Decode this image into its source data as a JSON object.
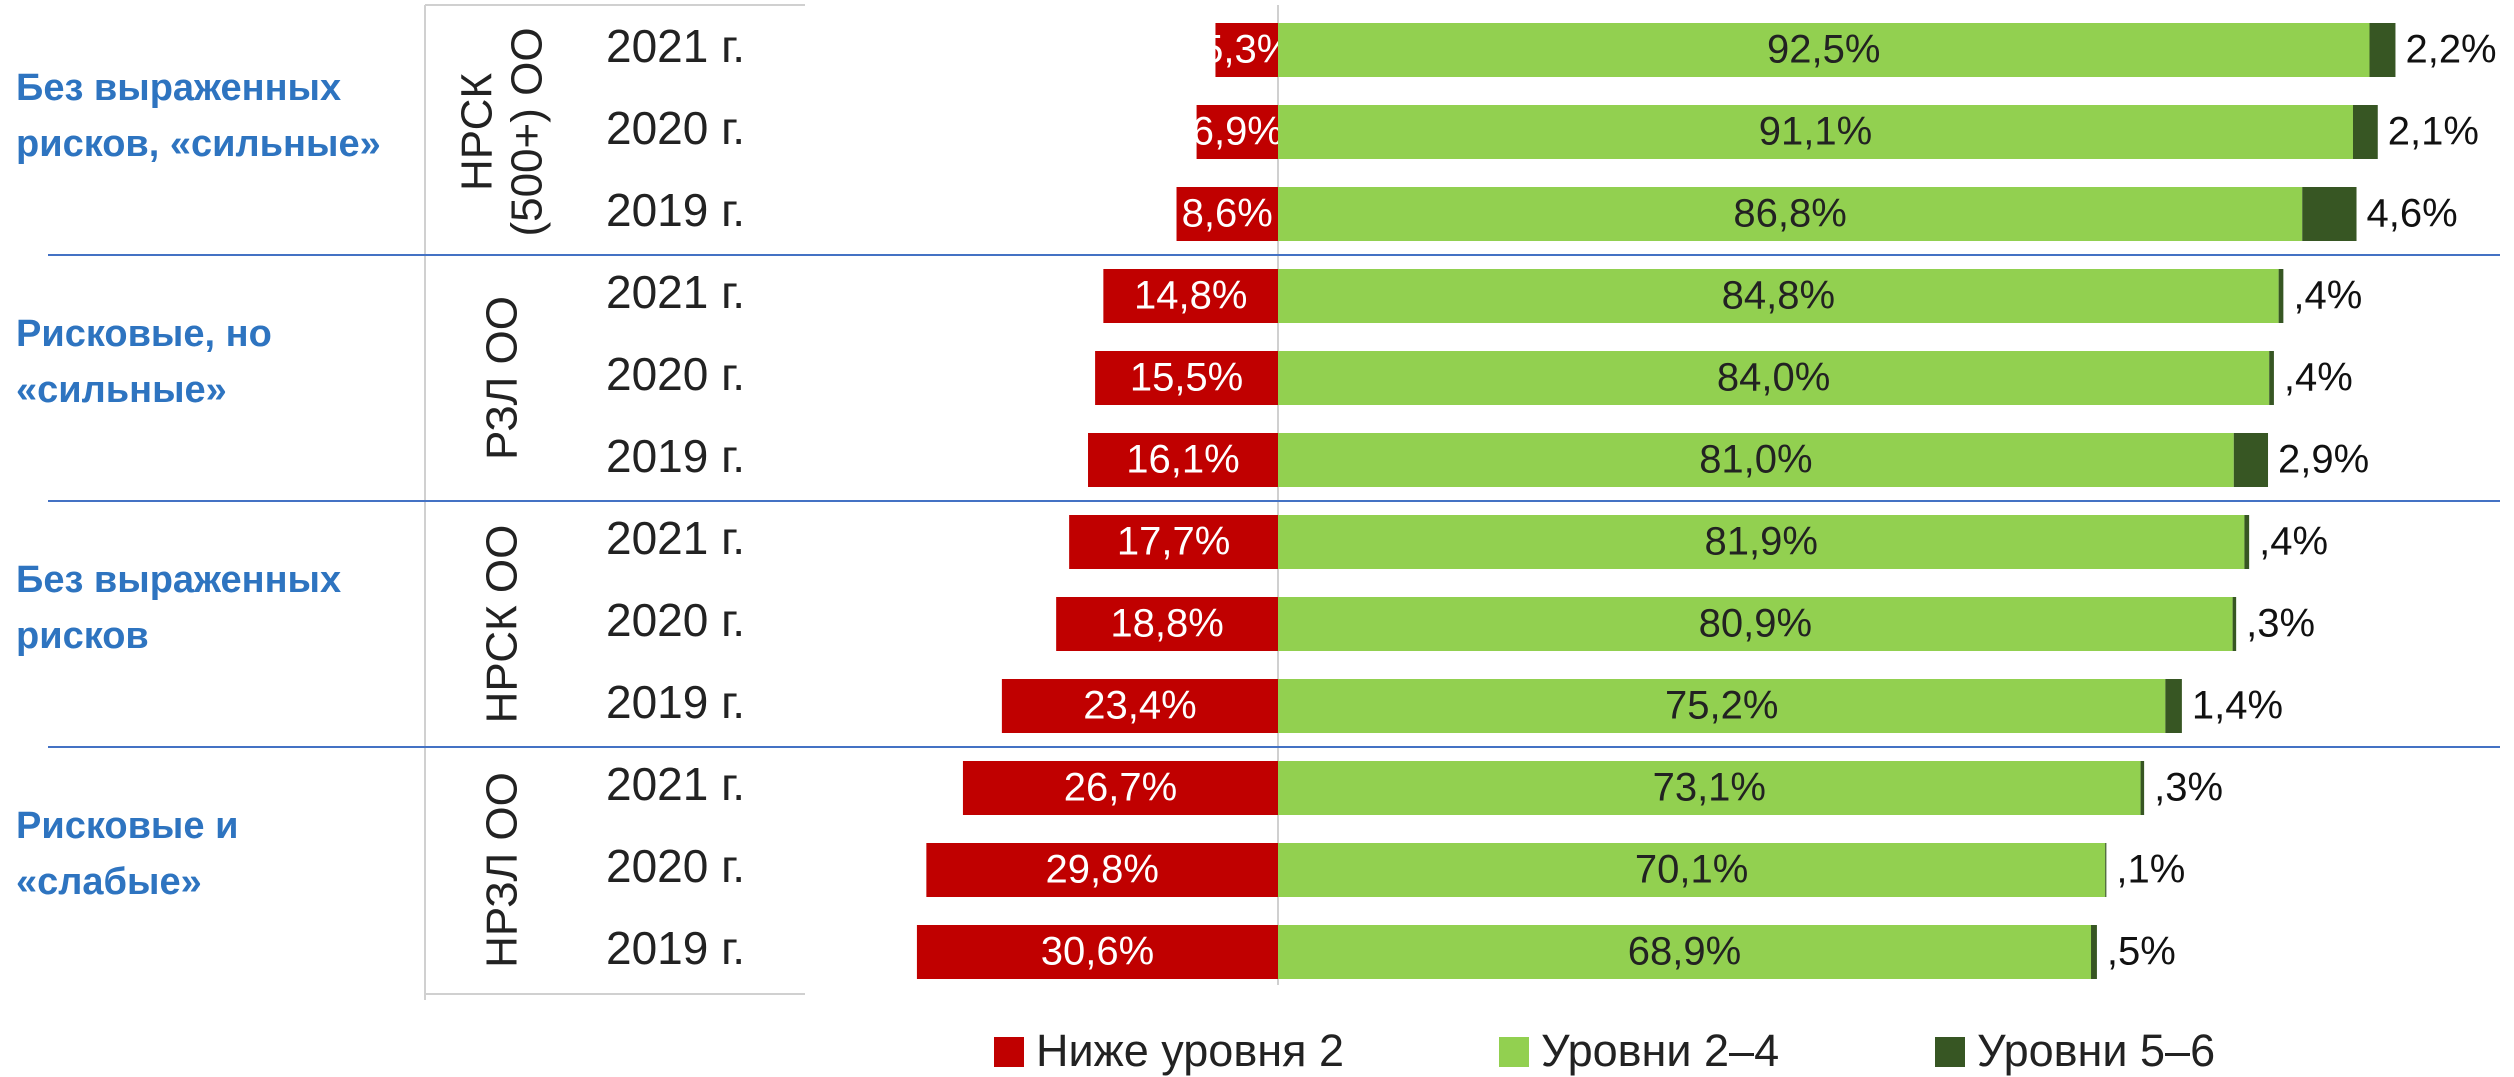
{
  "chart_data": {
    "type": "diverging_bar",
    "groups": [
      {
        "label_lines": [
          "Без выраженных",
          "рисков, «сильные»"
        ],
        "sublabel_lines": [
          "НРСК",
          "(500+) ОО"
        ],
        "categories": [
          "2021 г.",
          "2020 г.",
          "2019 г."
        ]
      },
      {
        "label_lines": [
          "Рисковые, но",
          "«сильные»"
        ],
        "sublabel_lines": [
          "РЗЛ ОО"
        ],
        "categories": [
          "2021 г.",
          "2020 г.",
          "2019 г."
        ]
      },
      {
        "label_lines": [
          "Без выраженных",
          "рисков"
        ],
        "sublabel_lines": [
          "НРСК ОО"
        ],
        "categories": [
          "2021 г.",
          "2020 г.",
          "2019 г."
        ]
      },
      {
        "label_lines": [
          "Рисковые и",
          "«слабые»"
        ],
        "sublabel_lines": [
          "НРЗЛ ОО"
        ],
        "categories": [
          "2021 г.",
          "2020 г.",
          "2019 г."
        ]
      }
    ],
    "series": [
      {
        "name": "Ниже уровня 2",
        "color": "#c00000",
        "direction": "left",
        "values": [
          5.3,
          6.9,
          8.6,
          14.8,
          15.5,
          16.1,
          17.7,
          18.8,
          23.4,
          26.7,
          29.8,
          30.6
        ],
        "value_labels": [
          "5,3%",
          "6,9%",
          "8,6%",
          "14,8%",
          "15,5%",
          "16,1%",
          "17,7%",
          "18,8%",
          "23,4%",
          "26,7%",
          "29,8%",
          "30,6%"
        ]
      },
      {
        "name": "Уровни 2–4",
        "color": "#92d050",
        "direction": "right",
        "values": [
          92.5,
          91.1,
          86.8,
          84.8,
          84.0,
          81.0,
          81.9,
          80.9,
          75.2,
          73.1,
          70.1,
          68.9
        ],
        "value_labels": [
          "92,5%",
          "91,1%",
          "86,8%",
          "84,8%",
          "84,0%",
          "81,0%",
          "81,9%",
          "80,9%",
          "75,2%",
          "73,1%",
          "70,1%",
          "68,9%"
        ]
      },
      {
        "name": "Уровни 5–6",
        "color": "#375623",
        "direction": "right",
        "values": [
          2.2,
          2.1,
          4.6,
          0.4,
          0.4,
          2.9,
          0.4,
          0.3,
          1.4,
          0.3,
          0.1,
          0.5
        ],
        "value_labels": [
          "2,2%",
          "2,1%",
          "4,6%",
          ",4%",
          ",4%",
          "2,9%",
          ",4%",
          ",3%",
          "1,4%",
          ",3%",
          ",1%",
          ",5%"
        ]
      }
    ]
  }
}
